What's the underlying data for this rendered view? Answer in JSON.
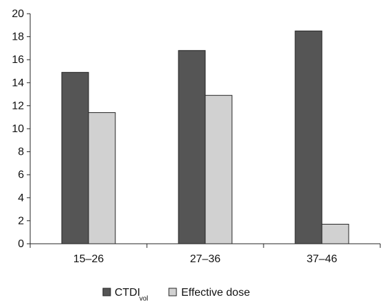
{
  "chart_data": {
    "type": "bar",
    "categories": [
      "15–26",
      "27–36",
      "37–46"
    ],
    "series": [
      {
        "name": "CTDIvol",
        "values": [
          14.9,
          16.8,
          18.5
        ],
        "color": "#555555"
      },
      {
        "name": "Effective dose",
        "values": [
          11.4,
          12.9,
          1.7
        ],
        "color": "#d1d1d1"
      }
    ],
    "ylim": [
      0,
      20
    ],
    "y_ticks": [
      0,
      2,
      4,
      6,
      8,
      10,
      12,
      14,
      16,
      18,
      20
    ],
    "grid": false,
    "legend_position": "bottom",
    "legend": [
      {
        "label_main": "CTDI",
        "label_sub": "vol",
        "color": "#555555"
      },
      {
        "label_main": "Effective dose",
        "label_sub": "",
        "color": "#d1d1d1"
      }
    ]
  }
}
